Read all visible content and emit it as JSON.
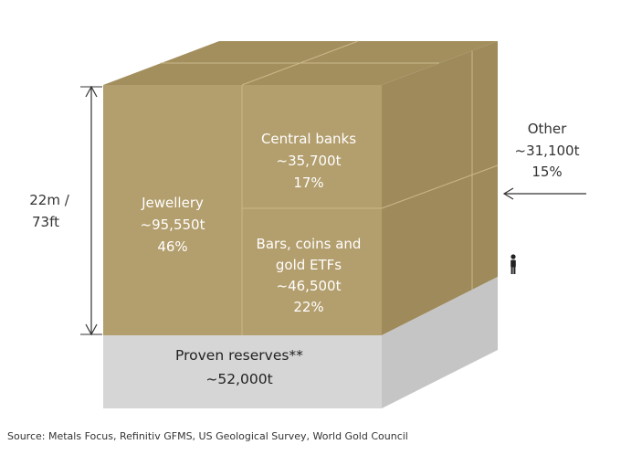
{
  "title": "",
  "colors": {
    "gold_front": "#B39E6D",
    "gold_top": "#A38F5E",
    "gold_side": "#9E8A5B",
    "reserves_front": "#D6D6D6",
    "reserves_side": "#C5C5C5",
    "arrow": "#333333"
  },
  "dimension": {
    "line1": "22m /",
    "line2": "73ft"
  },
  "segments": {
    "jewellery": {
      "name": "Jewellery",
      "tonnes": "~95,550t",
      "share": "46%"
    },
    "central_banks": {
      "name": "Central banks",
      "tonnes": "~35,700t",
      "share": "17%"
    },
    "bars_coins": {
      "name_line1": "Bars, coins and",
      "name_line2": "gold ETFs",
      "tonnes": "~46,500t",
      "share": "22%"
    },
    "other": {
      "name": "Other",
      "tonnes": "~31,100t",
      "share": "15%"
    }
  },
  "reserves": {
    "name": "Proven reserves**",
    "tonnes": "~52,000t"
  },
  "scale_icon": "person-icon",
  "source": "Source: Metals Focus, Refinitiv GFMS, US Geological Survey, World Gold Council"
}
